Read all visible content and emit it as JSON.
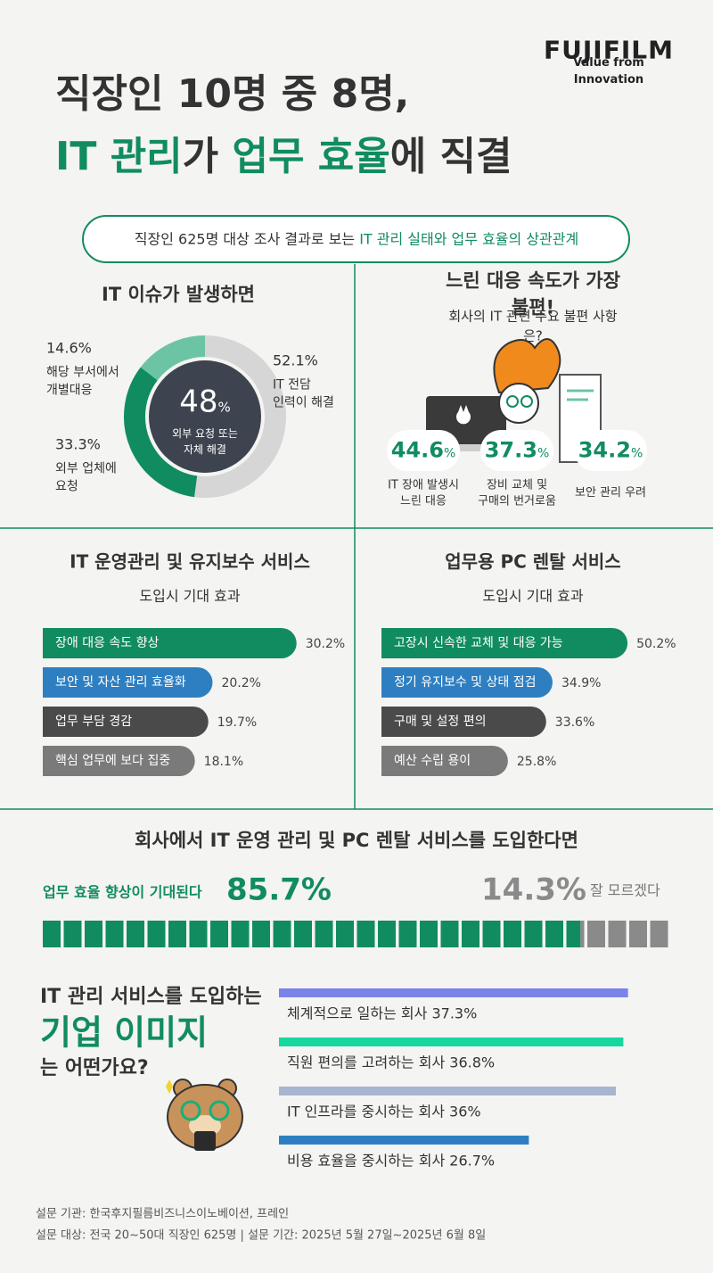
{
  "header": {
    "brand": "FUJIFILM",
    "tagline": "Value from Innovation",
    "title_lines": [
      [
        {
          "text": "직장인 10명 중 8명,"
        }
      ],
      [
        {
          "text": "IT 관리",
          "highlight": true
        },
        {
          "text": "가 "
        },
        {
          "text": "업무 효율",
          "highlight": true
        },
        {
          "text": "에 직결"
        }
      ]
    ],
    "banner": [
      {
        "text": "직장인 625명 대상 조사 결과로 보는 "
      },
      {
        "text": "IT 관리 실태와 업무 효율의 상관관계",
        "highlight": true
      }
    ]
  },
  "chart_data": [
    {
      "type": "donut",
      "title": "IT 이슈가 발생하면",
      "center": {
        "value": 48,
        "unit": "%",
        "label": "외부 요청 또는\n자체 해결"
      },
      "categories": [
        "IT 전담\n인력이 해결",
        "외부 업체에\n요청",
        "해당 부서에서\n개별대응"
      ],
      "values": [
        52.1,
        33.3,
        14.6
      ],
      "value_labels": [
        "52.1%",
        "33.3%",
        "14.6%"
      ],
      "colors": [
        "#d6d6d6",
        "#118c61",
        "#6cc4a4"
      ]
    },
    {
      "type": "callouts",
      "title": "느린 대응 속도가 가장 불편!",
      "subtitle": "회사의 IT 관련 주요 불편 사항은?",
      "categories": [
        "IT 장애 발생시\n느린 대응",
        "장비 교체 및\n구매의 번거로움",
        "보안 관리 우려"
      ],
      "values": [
        44.6,
        37.3,
        34.2
      ],
      "unit": "%",
      "color": "#118c61"
    },
    {
      "type": "hbar",
      "title": "IT 운영관리 및 유지보수 서비스",
      "subtitle": "도입시 기대 효과",
      "categories": [
        "장애 대응 속도 향상",
        "보안 및 자산 관리 효율화",
        "업무 부담 경감",
        "핵심 업무에 보다 집중"
      ],
      "values": [
        30.2,
        20.2,
        19.7,
        18.1
      ],
      "value_labels": [
        "30.2%",
        "20.2%",
        "19.7%",
        "18.1%"
      ],
      "colors": [
        "#118c61",
        "#2e7fc1",
        "#4a4a4a",
        "#7a7a7a"
      ],
      "xlim": [
        0,
        35
      ]
    },
    {
      "type": "hbar",
      "title": "업무용 PC 렌탈 서비스",
      "subtitle": "도입시 기대 효과",
      "categories": [
        "고장시 신속한 교체 및 대응 가능",
        "정기 유지보수 및 상태 점검",
        "구매 및 설정 편의",
        "예산 수립 용이"
      ],
      "values": [
        50.2,
        34.9,
        33.6,
        25.8
      ],
      "value_labels": [
        "50.2%",
        "34.9%",
        "33.6%",
        "25.8%"
      ],
      "colors": [
        "#118c61",
        "#2e7fc1",
        "#4a4a4a",
        "#7a7a7a"
      ],
      "xlim": [
        0,
        60
      ]
    },
    {
      "type": "split",
      "title": "회사에서 IT 운영 관리 및 PC 렌탈 서비스를 도입한다면",
      "categories": [
        "업무 효율 향상이 기대된다",
        "잘 모르겠다"
      ],
      "values": [
        85.7,
        14.3
      ],
      "value_labels": [
        "85.7%",
        "14.3%"
      ],
      "colors": [
        "#118c61",
        "#8a8a8a"
      ]
    },
    {
      "type": "thinbar",
      "title_lines": [
        [
          {
            "text": "IT 관리 서비스를 도입하는"
          }
        ],
        [
          {
            "text": "기업 이미지",
            "highlight": true
          }
        ],
        [
          {
            "text": "는 어떤가요?"
          }
        ]
      ],
      "categories": [
        "체계적으로 일하는 회사",
        "직원 편의를 고려하는 회사",
        "IT 인프라를 중시하는 회사",
        "비용 효율을 중시하는 회사"
      ],
      "values": [
        37.3,
        36.8,
        36,
        26.7
      ],
      "value_labels": [
        "37.3%",
        "36.8%",
        "36%",
        "26.7%"
      ],
      "colors": [
        "#7b82ea",
        "#17d7a0",
        "#a8b5d0",
        "#2e7fc1"
      ],
      "xlim": [
        0,
        40
      ]
    }
  ],
  "footer": [
    "설문 기관: 한국후지필름비즈니스이노베이션, 프레인",
    "설문 대상: 전국 20~50대 직장인 625명 | 설문 기간: 2025년 5월 27일~2025년 6월 8일"
  ]
}
